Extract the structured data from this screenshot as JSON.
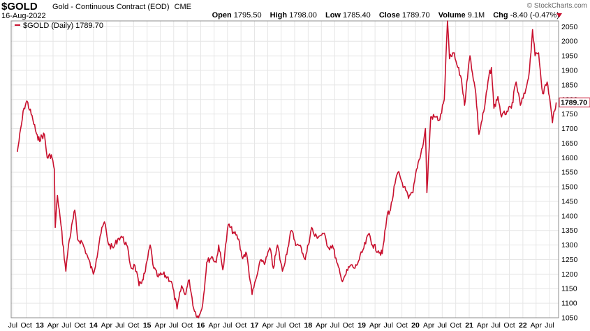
{
  "header": {
    "symbol": "$GOLD",
    "name": "Gold - Continuous Contract (EOD)",
    "exchange": "CME",
    "date": "16-Aug-2022",
    "brand": "© StockCharts.com",
    "stats": [
      {
        "label": "Open",
        "value": "1795.50"
      },
      {
        "label": "High",
        "value": "1798.00"
      },
      {
        "label": "Low",
        "value": "1785.40"
      },
      {
        "label": "Close",
        "value": "1789.70"
      },
      {
        "label": "Volume",
        "value": "9.1M"
      },
      {
        "label": "Chg",
        "value": "-8.40 (-0.47%)"
      }
    ]
  },
  "colors": {
    "line": "#c8102e",
    "grid": "#e6e6e6",
    "frame": "#8c8c8c"
  },
  "chart_data": {
    "type": "line",
    "legend": "$GOLD (Daily) 1789.70",
    "last_value": "1789.70",
    "ylim": [
      1050,
      2070
    ],
    "y_ticks": [
      1050,
      1100,
      1150,
      1200,
      1250,
      1300,
      1350,
      1400,
      1450,
      1500,
      1550,
      1600,
      1650,
      1700,
      1750,
      1800,
      1850,
      1900,
      1950,
      2000,
      2050
    ],
    "x_ticks": [
      "Jul",
      "Oct",
      "13",
      "Apr",
      "Jul",
      "Oct",
      "14",
      "Apr",
      "Jul",
      "Oct",
      "15",
      "Apr",
      "Jul",
      "Oct",
      "16",
      "Apr",
      "Jul",
      "Oct",
      "17",
      "Apr",
      "Jul",
      "Oct",
      "18",
      "Apr",
      "Jul",
      "Oct",
      "19",
      "Apr",
      "Jul",
      "Oct",
      "20",
      "Apr",
      "Jul",
      "Oct",
      "21",
      "Apr",
      "Jul",
      "Oct",
      "22",
      "Apr",
      "Jul"
    ],
    "x_tick_years": [
      "13",
      "14",
      "15",
      "16",
      "17",
      "18",
      "19",
      "20",
      "21",
      "22"
    ],
    "x": [
      "2012-08-01",
      "2012-09-15",
      "2012-10-05",
      "2012-11-15",
      "2012-12-20",
      "2013-02-01",
      "2013-02-20",
      "2013-03-20",
      "2013-04-10",
      "2013-04-16",
      "2013-05-01",
      "2013-05-20",
      "2013-06-27",
      "2013-07-15",
      "2013-08-27",
      "2013-09-15",
      "2013-10-15",
      "2013-11-15",
      "2013-12-31",
      "2014-01-20",
      "2014-02-15",
      "2014-03-17",
      "2014-04-15",
      "2014-05-15",
      "2014-06-15",
      "2014-07-10",
      "2014-08-15",
      "2014-09-15",
      "2014-10-10",
      "2014-11-07",
      "2014-11-30",
      "2014-12-20",
      "2015-01-22",
      "2015-02-15",
      "2015-03-17",
      "2015-04-15",
      "2015-05-18",
      "2015-06-15",
      "2015-07-24",
      "2015-08-24",
      "2015-09-15",
      "2015-10-15",
      "2015-11-15",
      "2015-12-17",
      "2016-01-15",
      "2016-02-11",
      "2016-03-15",
      "2016-04-15",
      "2016-05-02",
      "2016-05-30",
      "2016-07-06",
      "2016-08-15",
      "2016-09-15",
      "2016-10-07",
      "2016-11-08",
      "2016-12-15",
      "2017-01-15",
      "2017-02-15",
      "2017-03-15",
      "2017-04-15",
      "2017-05-09",
      "2017-06-06",
      "2017-07-10",
      "2017-08-15",
      "2017-09-08",
      "2017-10-15",
      "2017-11-15",
      "2017-12-12",
      "2018-01-25",
      "2018-02-15",
      "2018-03-15",
      "2018-04-15",
      "2018-05-21",
      "2018-06-15",
      "2018-07-15",
      "2018-08-16",
      "2018-09-15",
      "2018-10-15",
      "2018-11-15",
      "2018-12-15",
      "2019-01-15",
      "2019-02-20",
      "2019-03-15",
      "2019-04-23",
      "2019-05-20",
      "2019-06-25",
      "2019-07-15",
      "2019-08-15",
      "2019-09-04",
      "2019-10-15",
      "2019-11-15",
      "2019-12-15",
      "2020-01-08",
      "2020-02-24",
      "2020-03-09",
      "2020-03-19",
      "2020-04-14",
      "2020-05-15",
      "2020-06-15",
      "2020-07-15",
      "2020-08-06",
      "2020-08-20",
      "2020-09-15",
      "2020-10-15",
      "2020-11-09",
      "2020-11-30",
      "2020-12-15",
      "2021-01-06",
      "2021-02-15",
      "2021-03-08",
      "2021-04-15",
      "2021-05-15",
      "2021-06-01",
      "2021-06-18",
      "2021-07-15",
      "2021-08-09",
      "2021-09-15",
      "2021-10-15",
      "2021-11-16",
      "2021-12-15",
      "2022-01-15",
      "2022-02-15",
      "2022-03-08",
      "2022-03-25",
      "2022-04-18",
      "2022-05-16",
      "2022-06-15",
      "2022-07-01",
      "2022-07-21",
      "2022-08-01",
      "2022-08-16"
    ],
    "y": [
      1620,
      1770,
      1795,
      1730,
      1660,
      1680,
      1600,
      1610,
      1560,
      1360,
      1470,
      1390,
      1210,
      1300,
      1420,
      1320,
      1310,
      1270,
      1200,
      1250,
      1330,
      1380,
      1300,
      1290,
      1320,
      1330,
      1300,
      1220,
      1230,
      1160,
      1180,
      1210,
      1300,
      1220,
      1190,
      1200,
      1190,
      1175,
      1080,
      1160,
      1130,
      1180,
      1080,
      1050,
      1100,
      1240,
      1260,
      1240,
      1300,
      1215,
      1370,
      1340,
      1320,
      1260,
      1270,
      1130,
      1190,
      1250,
      1240,
      1290,
      1220,
      1300,
      1210,
      1290,
      1350,
      1300,
      1290,
      1250,
      1360,
      1330,
      1330,
      1340,
      1290,
      1300,
      1240,
      1180,
      1200,
      1230,
      1220,
      1250,
      1290,
      1340,
      1300,
      1280,
      1270,
      1410,
      1420,
      1510,
      1550,
      1500,
      1460,
      1480,
      1560,
      1650,
      1700,
      1480,
      1740,
      1740,
      1730,
      1800,
      2070,
      1940,
      1960,
      1910,
      1870,
      1780,
      1860,
      1950,
      1820,
      1680,
      1770,
      1880,
      1910,
      1770,
      1810,
      1740,
      1760,
      1770,
      1860,
      1780,
      1820,
      1900,
      2040,
      1950,
      1960,
      1820,
      1860,
      1810,
      1720,
      1760,
      1789.7
    ]
  }
}
